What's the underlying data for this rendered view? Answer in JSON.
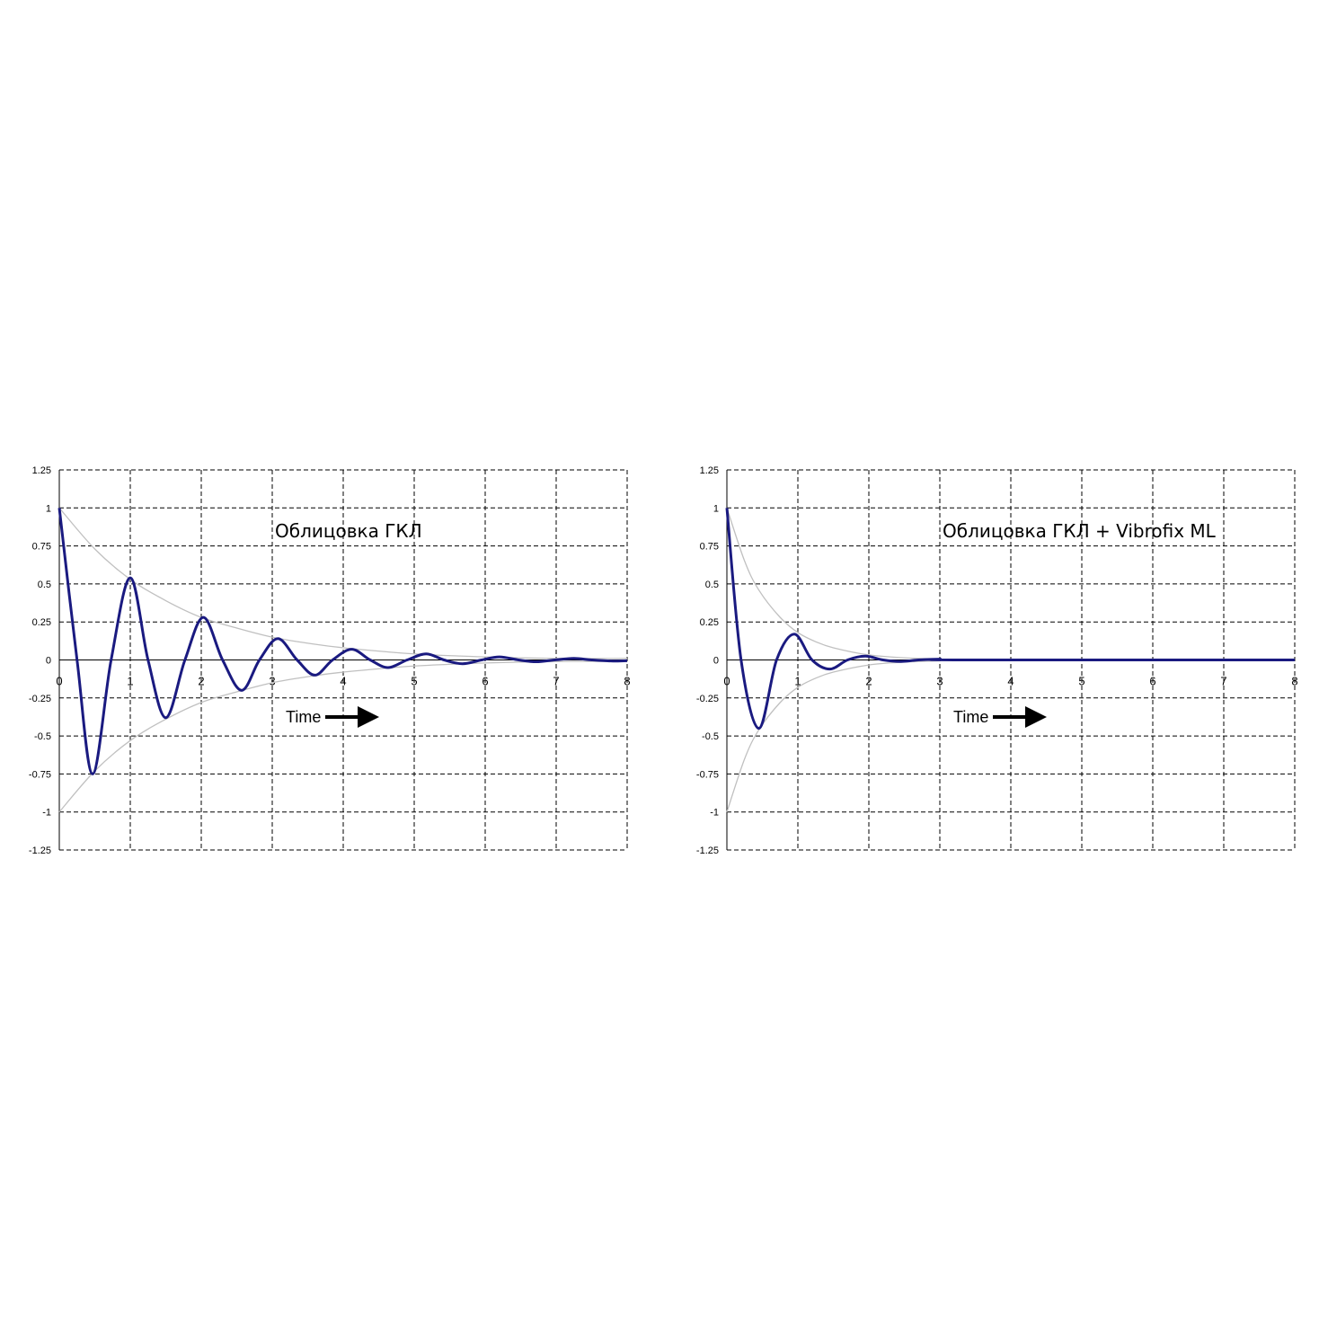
{
  "chart_data": [
    {
      "type": "line",
      "annotation": "Облицовка ГКЛ",
      "x_label": "Time",
      "xlim": [
        0,
        8
      ],
      "ylim": [
        -1.25,
        1.25
      ],
      "xticks": [
        0,
        1,
        2,
        3,
        4,
        5,
        6,
        7,
        8
      ],
      "yticks": [
        1.25,
        1,
        0.75,
        0.5,
        0.25,
        0,
        -0.25,
        -0.5,
        -0.75,
        -1,
        -1.25
      ],
      "grid": true,
      "series": [
        {
          "color": "#c0c0c0",
          "x": [
            0,
            0.5,
            1,
            1.5,
            2,
            2.5,
            3,
            3.5,
            4,
            5,
            6,
            7,
            8
          ],
          "values": [
            1,
            0.73,
            0.53,
            0.39,
            0.28,
            0.21,
            0.15,
            0.11,
            0.08,
            0.04,
            0.02,
            0.01,
            0.01
          ]
        },
        {
          "color": "#c0c0c0",
          "x": [
            0,
            0.5,
            1,
            1.5,
            2,
            2.5,
            3,
            3.5,
            4,
            5,
            6,
            7,
            8
          ],
          "values": [
            -1,
            -0.73,
            -0.53,
            -0.39,
            -0.28,
            -0.21,
            -0.15,
            -0.11,
            -0.08,
            -0.04,
            -0.02,
            -0.01,
            -0.01
          ]
        },
        {
          "color": "#1a1a80",
          "x": [
            0,
            0.25,
            0.47,
            0.73,
            1.0,
            1.25,
            1.5,
            1.77,
            2.03,
            2.3,
            2.57,
            2.82,
            3.08,
            3.35,
            3.6,
            3.85,
            4.12,
            4.38,
            4.63,
            4.9,
            5.17,
            5.42,
            5.68,
            5.95,
            6.2,
            6.47,
            6.72,
            6.98,
            7.25,
            7.5,
            7.77,
            8
          ],
          "values": [
            1,
            0,
            -0.75,
            0,
            0.54,
            0,
            -0.38,
            0,
            0.28,
            0,
            -0.2,
            0,
            0.14,
            0,
            -0.1,
            0,
            0.07,
            0,
            -0.05,
            0,
            0.04,
            0,
            -0.025,
            0,
            0.02,
            0,
            -0.012,
            0,
            0.01,
            0,
            -0.007,
            -0.005
          ]
        }
      ]
    },
    {
      "type": "line",
      "annotation": "Облицовка ГКЛ + Vibrofix ML",
      "x_label": "Time",
      "xlim": [
        0,
        8
      ],
      "ylim": [
        -1.25,
        1.25
      ],
      "xticks": [
        0,
        1,
        2,
        3,
        4,
        5,
        6,
        7,
        8
      ],
      "yticks": [
        1.25,
        1,
        0.75,
        0.5,
        0.25,
        0,
        -0.25,
        -0.5,
        -0.75,
        -1,
        -1.25
      ],
      "grid": true,
      "series": [
        {
          "color": "#c0c0c0",
          "x": [
            0,
            0.25,
            0.45,
            0.75,
            1,
            1.25,
            1.5,
            2,
            2.5,
            3
          ],
          "values": [
            1,
            0.65,
            0.46,
            0.28,
            0.18,
            0.12,
            0.08,
            0.033,
            0.014,
            0.006
          ]
        },
        {
          "color": "#c0c0c0",
          "x": [
            0,
            0.25,
            0.45,
            0.75,
            1,
            1.25,
            1.5,
            2,
            2.5,
            3
          ],
          "values": [
            -1,
            -0.65,
            -0.46,
            -0.28,
            -0.18,
            -0.12,
            -0.08,
            -0.033,
            -0.014,
            -0.006
          ]
        },
        {
          "color": "#1a1a80",
          "x": [
            0,
            0.2,
            0.45,
            0.7,
            0.95,
            1.2,
            1.45,
            1.7,
            1.95,
            2.2,
            2.45,
            2.7,
            3.0,
            3.3,
            8
          ],
          "values": [
            1,
            0,
            -0.45,
            0,
            0.17,
            0,
            -0.06,
            0,
            0.025,
            0,
            -0.01,
            0,
            0.005,
            0,
            0
          ]
        }
      ]
    }
  ]
}
